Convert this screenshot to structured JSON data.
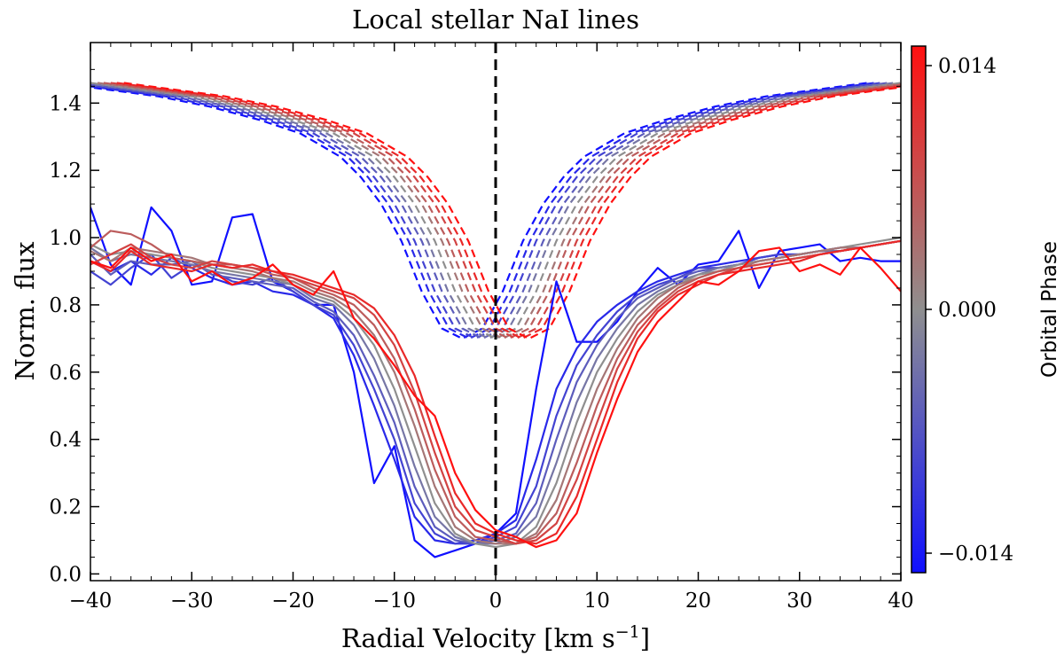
{
  "chart_data": {
    "type": "line",
    "title": "Local stellar NaI lines",
    "xlabel": "Radial Velocity [km s",
    "xlabel_sup": "−1",
    "xlabel_end": "]",
    "ylabel": "Norm. flux",
    "xlim": [
      -40,
      40
    ],
    "ylim": [
      -0.02,
      1.58
    ],
    "xticks": [
      -40,
      -30,
      -20,
      -10,
      0,
      10,
      20,
      30,
      40
    ],
    "xtick_labels": [
      "−40",
      "−30",
      "−20",
      "−10",
      "0",
      "10",
      "20",
      "30",
      "40"
    ],
    "yticks": [
      0.0,
      0.2,
      0.4,
      0.6,
      0.8,
      1.0,
      1.2,
      1.4
    ],
    "ytick_labels": [
      "0.0",
      "0.2",
      "0.4",
      "0.6",
      "0.8",
      "1.0",
      "1.2",
      "1.4"
    ],
    "vline": {
      "x": 0,
      "style": "dashed",
      "color": "#000000"
    },
    "colorbar": {
      "label": "Orbital Phase",
      "range": [
        -0.014,
        0.014
      ],
      "ticks": [
        0.014,
        0.0,
        -0.014
      ],
      "tick_labels": [
        "0.014",
        "0.000",
        "−0.014"
      ],
      "colors": {
        "low": "#1010ff",
        "mid": "#8f8f8f",
        "high": "#ff1010"
      }
    },
    "dashed_series": {
      "description": "model line profiles (dashed), one per orbital phase",
      "phases": [
        -0.014,
        -0.0112,
        -0.0084,
        -0.0056,
        -0.0028,
        0.0,
        0.0028,
        0.0056,
        0.0084,
        0.0112,
        0.014
      ],
      "shifts_kms": [
        -3.3,
        -2.6,
        -2.0,
        -1.3,
        -0.7,
        0.0,
        0.7,
        1.3,
        2.0,
        2.6,
        3.3
      ],
      "base_profile": {
        "x": [
          -40,
          -35,
          -30,
          -25,
          -20,
          -16,
          -12,
          -10,
          -8,
          -6,
          -4,
          -2,
          0,
          2,
          4,
          6,
          8,
          10,
          12,
          16,
          20,
          25,
          30,
          35,
          40
        ],
        "y": [
          1.46,
          1.44,
          1.42,
          1.39,
          1.35,
          1.31,
          1.24,
          1.18,
          1.1,
          0.99,
          0.84,
          0.73,
          0.7,
          0.73,
          0.84,
          0.99,
          1.1,
          1.18,
          1.24,
          1.31,
          1.35,
          1.39,
          1.42,
          1.44,
          1.46
        ]
      }
    },
    "solid_series": [
      {
        "phase": -0.014,
        "x": [
          -40,
          -38,
          -36,
          -34,
          -32,
          -30,
          -28,
          -26,
          -24,
          -22,
          -20,
          -18,
          -16,
          -14,
          -12,
          -10,
          -8,
          -6,
          -4,
          -2,
          0,
          2,
          4,
          6,
          8,
          10,
          12,
          14,
          16,
          18,
          20,
          22,
          24,
          26,
          28,
          30,
          32,
          34,
          36,
          38,
          40
        ],
        "y": [
          1.09,
          0.92,
          0.86,
          1.09,
          1.02,
          0.86,
          0.87,
          1.06,
          1.07,
          0.87,
          0.84,
          0.8,
          0.8,
          0.6,
          0.27,
          0.38,
          0.1,
          0.05,
          0.07,
          0.09,
          0.12,
          0.18,
          0.55,
          0.87,
          0.69,
          0.69,
          0.75,
          0.84,
          0.91,
          0.86,
          0.92,
          0.93,
          1.02,
          0.85,
          0.96,
          0.97,
          0.98,
          0.93,
          0.94,
          0.93,
          0.93
        ]
      },
      {
        "phase": -0.0112,
        "x": [
          -40,
          -38,
          -36,
          -34,
          -32,
          -30,
          -28,
          -26,
          -24,
          -22,
          -20,
          -18,
          -16,
          -14,
          -12,
          -10,
          -8,
          -6,
          -4,
          -2,
          0,
          2,
          4,
          6,
          8,
          10,
          12,
          14,
          16,
          18,
          20,
          22,
          24,
          26,
          28,
          30,
          32,
          34,
          36,
          38,
          40
        ],
        "y": [
          0.93,
          0.9,
          0.93,
          0.89,
          0.94,
          0.91,
          0.88,
          0.86,
          0.87,
          0.84,
          0.83,
          0.8,
          0.76,
          0.65,
          0.5,
          0.34,
          0.17,
          0.1,
          0.09,
          0.1,
          0.12,
          0.16,
          0.34,
          0.55,
          0.67,
          0.75,
          0.8,
          0.84,
          0.87,
          0.89,
          0.91,
          0.92,
          0.93,
          0.94,
          0.95,
          0.95,
          0.96,
          0.97,
          0.97,
          0.98,
          0.99
        ]
      },
      {
        "phase": -0.0084,
        "x": [
          -40,
          -38,
          -36,
          -34,
          -32,
          -30,
          -28,
          -26,
          -24,
          -22,
          -20,
          -18,
          -16,
          -14,
          -12,
          -10,
          -8,
          -6,
          -4,
          -2,
          0,
          2,
          4,
          6,
          8,
          10,
          12,
          14,
          16,
          18,
          20,
          22,
          24,
          26,
          28,
          30,
          32,
          34,
          36,
          38,
          40
        ],
        "y": [
          0.9,
          0.86,
          0.91,
          0.95,
          0.88,
          0.92,
          0.9,
          0.87,
          0.86,
          0.88,
          0.84,
          0.8,
          0.77,
          0.68,
          0.55,
          0.4,
          0.21,
          0.12,
          0.09,
          0.09,
          0.11,
          0.14,
          0.26,
          0.47,
          0.62,
          0.71,
          0.78,
          0.83,
          0.86,
          0.88,
          0.91,
          0.91,
          0.92,
          0.94,
          0.95,
          0.95,
          0.96,
          0.96,
          0.97,
          0.98,
          0.99
        ]
      },
      {
        "phase": -0.0056,
        "x": [
          -40,
          -38,
          -36,
          -34,
          -32,
          -30,
          -28,
          -26,
          -24,
          -22,
          -20,
          -18,
          -16,
          -14,
          -12,
          -10,
          -8,
          -6,
          -4,
          -2,
          0,
          2,
          4,
          6,
          8,
          10,
          12,
          14,
          16,
          18,
          20,
          22,
          24,
          26,
          28,
          30,
          32,
          34,
          36,
          38,
          40
        ],
        "y": [
          0.95,
          0.89,
          0.93,
          0.92,
          0.92,
          0.93,
          0.89,
          0.88,
          0.87,
          0.86,
          0.85,
          0.81,
          0.78,
          0.71,
          0.59,
          0.45,
          0.26,
          0.14,
          0.1,
          0.09,
          0.1,
          0.12,
          0.21,
          0.4,
          0.57,
          0.68,
          0.76,
          0.82,
          0.85,
          0.88,
          0.9,
          0.91,
          0.92,
          0.93,
          0.94,
          0.95,
          0.96,
          0.96,
          0.97,
          0.98,
          0.99
        ]
      },
      {
        "phase": -0.0028,
        "x": [
          -40,
          -38,
          -36,
          -34,
          -32,
          -30,
          -28,
          -26,
          -24,
          -22,
          -20,
          -18,
          -16,
          -14,
          -12,
          -10,
          -8,
          -6,
          -4,
          -2,
          0,
          2,
          4,
          6,
          8,
          10,
          12,
          14,
          16,
          18,
          20,
          22,
          24,
          26,
          28,
          30,
          32,
          34,
          36,
          38,
          40
        ],
        "y": [
          0.97,
          0.93,
          0.95,
          0.94,
          0.93,
          0.92,
          0.9,
          0.89,
          0.88,
          0.87,
          0.86,
          0.82,
          0.8,
          0.74,
          0.64,
          0.5,
          0.32,
          0.17,
          0.11,
          0.09,
          0.09,
          0.11,
          0.17,
          0.33,
          0.51,
          0.64,
          0.73,
          0.8,
          0.84,
          0.87,
          0.89,
          0.91,
          0.92,
          0.93,
          0.94,
          0.95,
          0.96,
          0.96,
          0.97,
          0.98,
          0.99
        ]
      },
      {
        "phase": 0.0,
        "x": [
          -40,
          -38,
          -36,
          -34,
          -32,
          -30,
          -28,
          -26,
          -24,
          -22,
          -20,
          -18,
          -16,
          -14,
          -12,
          -10,
          -8,
          -6,
          -4,
          -2,
          0,
          2,
          4,
          6,
          8,
          10,
          12,
          14,
          16,
          18,
          20,
          22,
          24,
          26,
          28,
          30,
          32,
          34,
          36,
          38,
          40
        ],
        "y": [
          0.98,
          0.95,
          0.96,
          0.95,
          0.94,
          0.93,
          0.91,
          0.9,
          0.89,
          0.88,
          0.86,
          0.83,
          0.81,
          0.76,
          0.68,
          0.55,
          0.38,
          0.21,
          0.12,
          0.09,
          0.08,
          0.09,
          0.14,
          0.27,
          0.45,
          0.6,
          0.7,
          0.78,
          0.83,
          0.86,
          0.89,
          0.9,
          0.92,
          0.93,
          0.94,
          0.95,
          0.96,
          0.97,
          0.98,
          0.99,
          1.0
        ]
      },
      {
        "phase": 0.0028,
        "x": [
          -40,
          -38,
          -36,
          -34,
          -32,
          -30,
          -28,
          -26,
          -24,
          -22,
          -20,
          -18,
          -16,
          -14,
          -12,
          -10,
          -8,
          -6,
          -4,
          -2,
          0,
          2,
          4,
          6,
          8,
          10,
          12,
          14,
          16,
          18,
          20,
          22,
          24,
          26,
          28,
          30,
          32,
          34,
          36,
          38,
          40
        ],
        "y": [
          0.96,
          0.93,
          0.97,
          0.96,
          0.95,
          0.94,
          0.92,
          0.91,
          0.9,
          0.88,
          0.87,
          0.84,
          0.82,
          0.78,
          0.71,
          0.6,
          0.44,
          0.26,
          0.14,
          0.1,
          0.09,
          0.09,
          0.12,
          0.22,
          0.39,
          0.55,
          0.67,
          0.76,
          0.82,
          0.86,
          0.88,
          0.9,
          0.91,
          0.93,
          0.94,
          0.95,
          0.96,
          0.97,
          0.97,
          0.98,
          0.99
        ]
      },
      {
        "phase": 0.0056,
        "x": [
          -40,
          -38,
          -36,
          -34,
          -32,
          -30,
          -28,
          -26,
          -24,
          -22,
          -20,
          -18,
          -16,
          -14,
          -12,
          -10,
          -8,
          -6,
          -4,
          -2,
          0,
          2,
          4,
          6,
          8,
          10,
          12,
          14,
          16,
          18,
          20,
          22,
          24,
          26,
          28,
          30,
          32,
          34,
          36,
          38,
          40
        ],
        "y": [
          0.97,
          1.02,
          1.01,
          0.98,
          0.94,
          0.93,
          0.92,
          0.92,
          0.91,
          0.89,
          0.88,
          0.85,
          0.83,
          0.8,
          0.74,
          0.64,
          0.49,
          0.31,
          0.17,
          0.11,
          0.1,
          0.09,
          0.11,
          0.18,
          0.33,
          0.5,
          0.64,
          0.74,
          0.8,
          0.85,
          0.88,
          0.9,
          0.91,
          0.92,
          0.93,
          0.94,
          0.95,
          0.96,
          0.97,
          0.98,
          0.99
        ]
      },
      {
        "phase": 0.0084,
        "x": [
          -40,
          -38,
          -36,
          -34,
          -32,
          -30,
          -28,
          -26,
          -24,
          -22,
          -20,
          -18,
          -16,
          -14,
          -12,
          -10,
          -8,
          -6,
          -4,
          -2,
          0,
          2,
          4,
          6,
          8,
          10,
          12,
          14,
          16,
          18,
          20,
          22,
          24,
          26,
          28,
          30,
          32,
          34,
          36,
          38,
          40
        ],
        "y": [
          0.92,
          0.95,
          0.98,
          0.94,
          0.92,
          0.91,
          0.93,
          0.92,
          0.91,
          0.9,
          0.88,
          0.86,
          0.84,
          0.82,
          0.77,
          0.68,
          0.54,
          0.36,
          0.2,
          0.13,
          0.11,
          0.09,
          0.1,
          0.15,
          0.28,
          0.45,
          0.61,
          0.72,
          0.79,
          0.84,
          0.87,
          0.89,
          0.91,
          0.92,
          0.93,
          0.94,
          0.95,
          0.96,
          0.97,
          0.98,
          0.99
        ]
      },
      {
        "phase": 0.0112,
        "x": [
          -40,
          -38,
          -36,
          -34,
          -32,
          -30,
          -28,
          -26,
          -24,
          -22,
          -20,
          -18,
          -16,
          -14,
          -12,
          -10,
          -8,
          -6,
          -4,
          -2,
          0,
          2,
          4,
          6,
          8,
          10,
          12,
          14,
          16,
          18,
          20,
          22,
          24,
          26,
          28,
          30,
          32,
          34,
          36,
          38,
          40
        ],
        "y": [
          0.93,
          0.9,
          0.96,
          0.92,
          0.91,
          0.9,
          0.92,
          0.91,
          0.92,
          0.9,
          0.89,
          0.87,
          0.85,
          0.83,
          0.79,
          0.71,
          0.59,
          0.41,
          0.24,
          0.15,
          0.12,
          0.1,
          0.09,
          0.12,
          0.23,
          0.4,
          0.57,
          0.7,
          0.78,
          0.83,
          0.86,
          0.89,
          0.9,
          0.91,
          0.92,
          0.93,
          0.95,
          0.96,
          0.97,
          0.98,
          0.99
        ]
      },
      {
        "phase": 0.014,
        "x": [
          -40,
          -38,
          -36,
          -34,
          -32,
          -30,
          -28,
          -26,
          -24,
          -22,
          -20,
          -18,
          -16,
          -14,
          -12,
          -10,
          -8,
          -6,
          -4,
          -2,
          0,
          2,
          4,
          6,
          8,
          10,
          12,
          14,
          16,
          18,
          20,
          22,
          24,
          26,
          28,
          30,
          32,
          34,
          36,
          38,
          40
        ],
        "y": [
          0.93,
          0.91,
          0.97,
          0.93,
          0.95,
          0.87,
          0.9,
          0.86,
          0.88,
          0.92,
          0.86,
          0.83,
          0.9,
          0.76,
          0.7,
          0.62,
          0.53,
          0.47,
          0.3,
          0.19,
          0.13,
          0.11,
          0.08,
          0.1,
          0.18,
          0.36,
          0.52,
          0.66,
          0.75,
          0.81,
          0.87,
          0.86,
          0.9,
          0.96,
          0.97,
          0.9,
          0.92,
          0.89,
          0.97,
          0.91,
          0.84
        ]
      }
    ]
  }
}
